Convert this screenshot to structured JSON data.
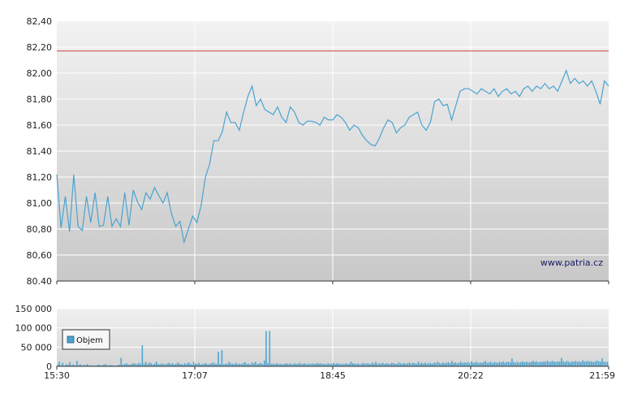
{
  "watermark": "www.patria.cz",
  "colors": {
    "price_line": "#4aa3d0",
    "reference_line": "#d04040",
    "volume_bar": "#4aa3d0",
    "grid": "#ffffff",
    "bg_top": "#f2f2f2",
    "bg_bottom": "#c8c8c8"
  },
  "chart_data": [
    {
      "type": "line",
      "x_ticks": [
        "15:30",
        "17:07",
        "18:45",
        "20:22",
        "21:59"
      ],
      "y_ticks": [
        "80.40",
        "80,60",
        "80,80",
        "81,00",
        "81,20",
        "81,40",
        "81,60",
        "81,80",
        "82,00",
        "82,20",
        "82,40"
      ],
      "ylim": [
        80.4,
        82.4
      ],
      "grid": true,
      "reference_line": 82.17,
      "series": [
        {
          "values": [
            81.22,
            80.81,
            81.05,
            80.78,
            81.22,
            80.82,
            80.79,
            81.05,
            80.85,
            81.08,
            80.82,
            80.83,
            81.05,
            80.82,
            80.88,
            80.82,
            81.08,
            80.83,
            81.1,
            81.01,
            80.95,
            81.08,
            81.03,
            81.12,
            81.06,
            81.0,
            81.08,
            80.92,
            80.82,
            80.86,
            80.7,
            80.8,
            80.9,
            80.85,
            80.98,
            81.2,
            81.3,
            81.48,
            81.48,
            81.55,
            81.7,
            81.62,
            81.62,
            81.56,
            81.7,
            81.82,
            81.9,
            81.75,
            81.8,
            81.72,
            81.7,
            81.68,
            81.74,
            81.66,
            81.62,
            81.74,
            81.7,
            81.62,
            81.6,
            81.63,
            81.63,
            81.62,
            81.6,
            81.66,
            81.64,
            81.64,
            81.68,
            81.66,
            81.62,
            81.56,
            81.6,
            81.58,
            81.52,
            81.48,
            81.45,
            81.44,
            81.5,
            81.58,
            81.64,
            81.62,
            81.54,
            81.58,
            81.6,
            81.66,
            81.68,
            81.7,
            81.6,
            81.56,
            81.62,
            81.78,
            81.8,
            81.75,
            81.76,
            81.64,
            81.75,
            81.86,
            81.88,
            81.88,
            81.86,
            81.84,
            81.88,
            81.86,
            81.84,
            81.88,
            81.82,
            81.86,
            81.88,
            81.84,
            81.86,
            81.82,
            81.88,
            81.9,
            81.86,
            81.9,
            81.88,
            81.92,
            81.88,
            81.9,
            81.86,
            81.94,
            82.02,
            81.92,
            81.96,
            81.92,
            81.94,
            81.9,
            81.94,
            81.86,
            81.76,
            81.94,
            81.9
          ]
        }
      ]
    },
    {
      "type": "bar",
      "series_label": "Objem",
      "x_ticks": [
        "15:30",
        "17:07",
        "18:45",
        "20:22",
        "21:59"
      ],
      "y_ticks": [
        "0",
        "50 000",
        "100 000",
        "150 000"
      ],
      "ylim": [
        0,
        150000
      ],
      "grid": true,
      "values": [
        4000,
        12000,
        3000,
        9000,
        2000,
        6000,
        4000,
        11000,
        3000,
        5000,
        2000,
        14000,
        3000,
        5000,
        2000,
        4000,
        3000,
        6000,
        2000,
        3000,
        1500,
        2500,
        2000,
        5000,
        3000,
        2000,
        4000,
        6000,
        3000,
        2000,
        3500,
        2500,
        2000,
        1500,
        3000,
        4000,
        22000,
        5000,
        6000,
        8000,
        5000,
        4000,
        6000,
        8000,
        7000,
        5000,
        9000,
        6000,
        55000,
        7000,
        12000,
        6000,
        10000,
        8000,
        5000,
        7000,
        12000,
        6000,
        5000,
        8000,
        6000,
        5000,
        7000,
        9000,
        6000,
        8000,
        5000,
        6000,
        10000,
        7000,
        6000,
        5000,
        8000,
        6000,
        10000,
        7000,
        5000,
        12000,
        7000,
        6000,
        9000,
        5000,
        6000,
        7000,
        8000,
        5000,
        6000,
        8000,
        10000,
        7000,
        6000,
        38000,
        6000,
        42000,
        5000,
        7000,
        6000,
        12000,
        8000,
        7000,
        6000,
        9000,
        5000,
        7000,
        6000,
        8000,
        11000,
        6000,
        7000,
        5000,
        10000,
        8000,
        12000,
        6000,
        7000,
        9000,
        6000,
        15000,
        92000,
        8000,
        92000,
        6000,
        7000,
        5000,
        8000,
        6000,
        7000,
        5000,
        6000,
        8000,
        7000,
        6000,
        7000,
        5000,
        8000,
        6000,
        7000,
        9000,
        6000,
        7000,
        8000,
        5000,
        7000,
        6000,
        8000,
        7000,
        6000,
        9000,
        7000,
        8000,
        6000,
        7000,
        5000,
        8000,
        6000,
        7000,
        9000,
        6000,
        8000,
        7000,
        6000,
        7000,
        5000,
        8000,
        6000,
        7000,
        12000,
        8000,
        7000,
        6000,
        8000,
        5000,
        7000,
        9000,
        6000,
        8000,
        7000,
        6000,
        10000,
        7000,
        12000,
        6000,
        8000,
        7000,
        9000,
        6000,
        8000,
        7000,
        6000,
        9000,
        8000,
        7000,
        6000,
        10000,
        8000,
        7000,
        9000,
        6000,
        8000,
        10000,
        7000,
        9000,
        8000,
        6000,
        12000,
        8000,
        9000,
        7000,
        10000,
        6000,
        9000,
        8000,
        7000,
        10000,
        8000,
        12000,
        9000,
        7000,
        10000,
        8000,
        9000,
        11000,
        8000,
        14000,
        9000,
        10000,
        8000,
        9000,
        12000,
        8000,
        10000,
        9000,
        11000,
        8000,
        13000,
        10000,
        9000,
        12000,
        8000,
        10000,
        9000,
        11000,
        14000,
        9000,
        10000,
        12000,
        8000,
        11000,
        10000,
        9000,
        12000,
        10000,
        13000,
        9000,
        11000,
        12000,
        10000,
        20000,
        11000,
        9000,
        12000,
        10000,
        11000,
        13000,
        10000,
        12000,
        11000,
        10000,
        12000,
        14000,
        11000,
        13000,
        10000,
        12000,
        11000,
        13000,
        12000,
        15000,
        11000,
        12000,
        14000,
        12000,
        11000,
        13000,
        12000,
        22000,
        13000,
        11000,
        14000,
        12000,
        10000,
        13000,
        12000,
        14000,
        12000,
        13000,
        11000,
        16000,
        12000,
        13000,
        14000,
        12000,
        13000,
        11000,
        12000,
        15000,
        13000,
        12000,
        21000,
        12000,
        11000,
        12000
      ]
    }
  ]
}
